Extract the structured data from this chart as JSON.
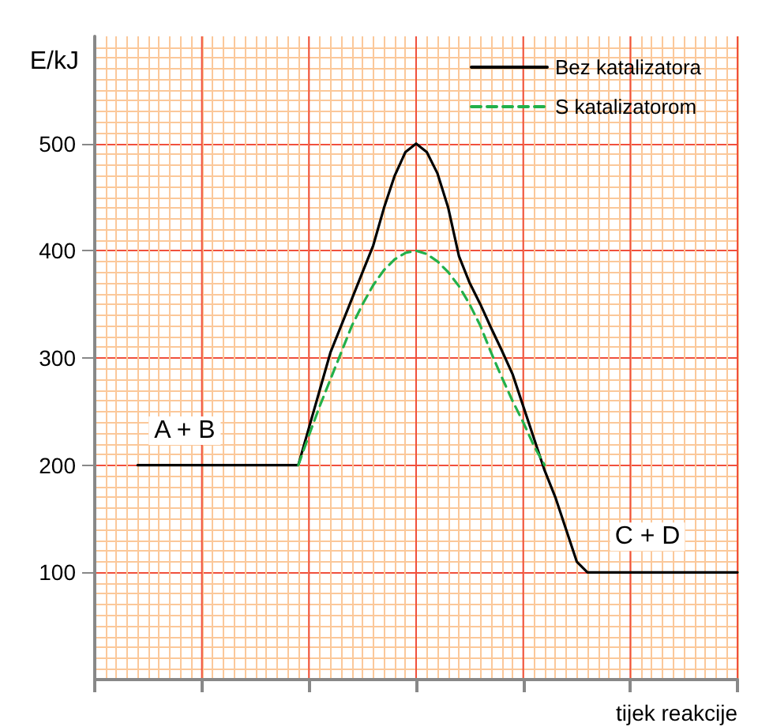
{
  "chart_data": {
    "type": "line",
    "xlabel": "tijek reakcije",
    "ylabel": "E/kJ",
    "categories": [
      null,
      null,
      null,
      null,
      null,
      null,
      null,
      null,
      null,
      null,
      null,
      null,
      null,
      null,
      null,
      null,
      null,
      null,
      null,
      null,
      null,
      null,
      null,
      null,
      null,
      null,
      null,
      null,
      null,
      null,
      null,
      null,
      null,
      null,
      null,
      null,
      null,
      null,
      null,
      null,
      null,
      null,
      null,
      null,
      null,
      null,
      null,
      null,
      null,
      null,
      null,
      null,
      null,
      null,
      null,
      null,
      null,
      null,
      null,
      null,
      null
    ],
    "ylim": [
      0,
      600
    ],
    "yticks": [
      100,
      200,
      300,
      400,
      500
    ],
    "series": [
      {
        "name": "Bez katalizatora",
        "color": "#000000",
        "line_style": "solid",
        "values": [
          null,
          null,
          null,
          null,
          200,
          200,
          200,
          200,
          200,
          200,
          200,
          200,
          200,
          200,
          200,
          200,
          200,
          200,
          200,
          200,
          235,
          270,
          305,
          330,
          355,
          380,
          405,
          440,
          470,
          492,
          500,
          492,
          472,
          440,
          395,
          370,
          350,
          328,
          307,
          285,
          255,
          225,
          195,
          170,
          140,
          110,
          100,
          100,
          100,
          100,
          100,
          100,
          100,
          100,
          100,
          100,
          100,
          100,
          100,
          100,
          100
        ]
      },
      {
        "name": "S katalizatorom",
        "color": "#22b04a",
        "line_style": "dashed",
        "values": [
          null,
          null,
          null,
          null,
          null,
          null,
          null,
          null,
          null,
          null,
          null,
          null,
          null,
          null,
          null,
          null,
          null,
          null,
          null,
          200,
          228,
          255,
          280,
          305,
          330,
          350,
          368,
          382,
          392,
          398,
          400,
          397,
          390,
          380,
          367,
          350,
          330,
          305,
          282,
          260,
          240,
          218,
          200,
          null,
          null,
          null,
          null,
          null,
          null,
          null,
          null,
          null,
          null,
          null,
          null,
          null,
          null,
          null,
          null,
          null,
          null
        ]
      }
    ],
    "annotations": [
      "A + B",
      "C + D"
    ],
    "grid": true,
    "legend": "top right",
    "marker": "none"
  }
}
